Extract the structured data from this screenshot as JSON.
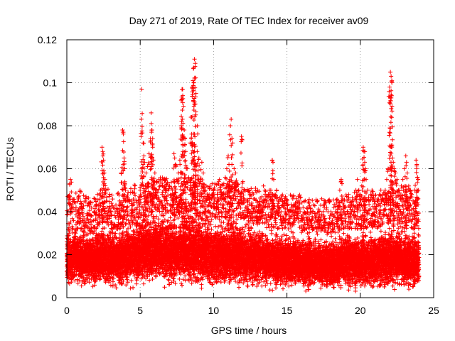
{
  "chart_data": {
    "type": "scatter",
    "title": "Day 271 of 2019, Rate Of TEC Index for receiver av09",
    "xlabel": "GPS time / hours",
    "ylabel": "ROTI / TECUs",
    "xlim": [
      0,
      25
    ],
    "ylim": [
      0,
      0.12
    ],
    "xticks": [
      0,
      5,
      10,
      15,
      20,
      25
    ],
    "yticks": [
      0,
      0.02,
      0.04,
      0.06,
      0.08,
      0.1,
      0.12
    ],
    "xtick_labels": [
      "0",
      "5",
      "10",
      "15",
      "20",
      "25"
    ],
    "ytick_labels": [
      "0",
      "0.02",
      "0.04",
      "0.06",
      "0.08",
      "0.1",
      "0.12"
    ],
    "grid": true,
    "marker": "+",
    "series": [
      {
        "color": "#ff0000",
        "points": [
          [
            0.05,
            0.012
          ],
          [
            0.1,
            0.02
          ],
          [
            0.15,
            0.03
          ],
          [
            0.2,
            0.053
          ],
          [
            0.25,
            0.055
          ],
          [
            0.3,
            0.04
          ],
          [
            0.4,
            0.025
          ],
          [
            0.5,
            0.018
          ],
          [
            0.6,
            0.03
          ],
          [
            0.7,
            0.035
          ],
          [
            0.8,
            0.046
          ],
          [
            0.9,
            0.05
          ],
          [
            1.0,
            0.042
          ],
          [
            1.1,
            0.028
          ],
          [
            1.2,
            0.022
          ],
          [
            1.3,
            0.035
          ],
          [
            1.4,
            0.039
          ],
          [
            1.5,
            0.044
          ],
          [
            1.6,
            0.03
          ],
          [
            1.7,
            0.038
          ],
          [
            1.8,
            0.03
          ],
          [
            1.9,
            0.046
          ],
          [
            2.0,
            0.043
          ],
          [
            2.1,
            0.035
          ],
          [
            2.2,
            0.041
          ],
          [
            2.3,
            0.05
          ],
          [
            2.4,
            0.07
          ],
          [
            2.45,
            0.068
          ],
          [
            2.5,
            0.064
          ],
          [
            2.55,
            0.058
          ],
          [
            2.6,
            0.055
          ],
          [
            2.7,
            0.045
          ],
          [
            2.8,
            0.038
          ],
          [
            2.9,
            0.042
          ],
          [
            3.0,
            0.035
          ],
          [
            3.1,
            0.03
          ],
          [
            3.2,
            0.033
          ],
          [
            3.3,
            0.028
          ],
          [
            3.4,
            0.032
          ],
          [
            3.5,
            0.034
          ],
          [
            3.6,
            0.045
          ],
          [
            3.7,
            0.058
          ],
          [
            3.8,
            0.078
          ],
          [
            3.85,
            0.077
          ],
          [
            3.9,
            0.065
          ],
          [
            3.95,
            0.06
          ],
          [
            4.0,
            0.05
          ],
          [
            4.1,
            0.042
          ],
          [
            4.2,
            0.036
          ],
          [
            4.3,
            0.035
          ],
          [
            4.4,
            0.045
          ],
          [
            4.5,
            0.04
          ],
          [
            4.6,
            0.038
          ],
          [
            4.7,
            0.036
          ],
          [
            4.8,
            0.042
          ],
          [
            4.9,
            0.045
          ],
          [
            5.0,
            0.05
          ],
          [
            5.1,
            0.097
          ],
          [
            5.2,
            0.072
          ],
          [
            5.25,
            0.066
          ],
          [
            5.3,
            0.063
          ],
          [
            5.4,
            0.058
          ],
          [
            5.5,
            0.061
          ],
          [
            5.6,
            0.067
          ],
          [
            5.7,
            0.074
          ],
          [
            5.75,
            0.086
          ],
          [
            5.8,
            0.078
          ],
          [
            5.85,
            0.07
          ],
          [
            5.9,
            0.064
          ],
          [
            6.0,
            0.058
          ],
          [
            6.1,
            0.05
          ],
          [
            6.2,
            0.046
          ],
          [
            6.3,
            0.043
          ],
          [
            6.4,
            0.045
          ],
          [
            6.5,
            0.048
          ],
          [
            6.6,
            0.05
          ],
          [
            6.7,
            0.055
          ],
          [
            6.8,
            0.047
          ],
          [
            6.9,
            0.05
          ],
          [
            7.0,
            0.052
          ],
          [
            7.1,
            0.048
          ],
          [
            7.2,
            0.05
          ],
          [
            7.3,
            0.067
          ],
          [
            7.35,
            0.065
          ],
          [
            7.4,
            0.062
          ],
          [
            7.5,
            0.055
          ],
          [
            7.6,
            0.058
          ],
          [
            7.7,
            0.064
          ],
          [
            7.8,
            0.08
          ],
          [
            7.85,
            0.097
          ],
          [
            7.9,
            0.094
          ],
          [
            7.95,
            0.089
          ],
          [
            8.0,
            0.078
          ],
          [
            8.05,
            0.074
          ],
          [
            8.1,
            0.068
          ],
          [
            8.2,
            0.06
          ],
          [
            8.3,
            0.056
          ],
          [
            8.4,
            0.072
          ],
          [
            8.5,
            0.084
          ],
          [
            8.55,
            0.098
          ],
          [
            8.6,
            0.101
          ],
          [
            8.65,
            0.107
          ],
          [
            8.7,
            0.111
          ],
          [
            8.75,
            0.109
          ],
          [
            8.8,
            0.095
          ],
          [
            8.9,
            0.08
          ],
          [
            9.0,
            0.065
          ],
          [
            9.1,
            0.055
          ],
          [
            9.2,
            0.063
          ],
          [
            9.3,
            0.058
          ],
          [
            9.4,
            0.05
          ],
          [
            9.5,
            0.046
          ],
          [
            9.6,
            0.04
          ],
          [
            9.7,
            0.048
          ],
          [
            9.8,
            0.044
          ],
          [
            9.9,
            0.053
          ],
          [
            10.0,
            0.05
          ],
          [
            10.1,
            0.046
          ],
          [
            10.2,
            0.042
          ],
          [
            10.3,
            0.05
          ],
          [
            10.4,
            0.055
          ],
          [
            10.5,
            0.052
          ],
          [
            10.6,
            0.048
          ],
          [
            10.7,
            0.053
          ],
          [
            10.8,
            0.056
          ],
          [
            10.9,
            0.06
          ],
          [
            11.0,
            0.066
          ],
          [
            11.05,
            0.062
          ],
          [
            11.1,
            0.055
          ],
          [
            11.15,
            0.08
          ],
          [
            11.2,
            0.083
          ],
          [
            11.3,
            0.072
          ],
          [
            11.4,
            0.06
          ],
          [
            11.5,
            0.058
          ],
          [
            11.6,
            0.052
          ],
          [
            11.7,
            0.05
          ],
          [
            11.8,
            0.048
          ],
          [
            11.9,
            0.075
          ],
          [
            12.0,
            0.054
          ],
          [
            12.1,
            0.046
          ],
          [
            12.2,
            0.042
          ],
          [
            12.3,
            0.045
          ],
          [
            12.4,
            0.05
          ],
          [
            12.5,
            0.048
          ],
          [
            12.6,
            0.044
          ],
          [
            12.7,
            0.04
          ],
          [
            12.8,
            0.046
          ],
          [
            12.9,
            0.042
          ],
          [
            13.0,
            0.05
          ],
          [
            13.1,
            0.044
          ],
          [
            13.2,
            0.04
          ],
          [
            13.3,
            0.047
          ],
          [
            13.4,
            0.052
          ],
          [
            13.5,
            0.05
          ],
          [
            13.6,
            0.045
          ],
          [
            13.7,
            0.042
          ],
          [
            13.8,
            0.05
          ],
          [
            13.9,
            0.05
          ],
          [
            14.0,
            0.064
          ],
          [
            14.05,
            0.063
          ],
          [
            14.1,
            0.055
          ],
          [
            14.2,
            0.048
          ],
          [
            14.3,
            0.05
          ],
          [
            14.4,
            0.045
          ],
          [
            14.5,
            0.042
          ],
          [
            14.6,
            0.04
          ],
          [
            14.7,
            0.045
          ],
          [
            14.8,
            0.042
          ],
          [
            14.9,
            0.047
          ],
          [
            15.0,
            0.044
          ],
          [
            15.1,
            0.04
          ],
          [
            15.2,
            0.038
          ],
          [
            15.3,
            0.042
          ],
          [
            15.4,
            0.046
          ],
          [
            15.5,
            0.04
          ],
          [
            15.6,
            0.044
          ],
          [
            15.7,
            0.042
          ],
          [
            15.8,
            0.045
          ],
          [
            15.9,
            0.04
          ],
          [
            16.0,
            0.038
          ],
          [
            16.1,
            0.042
          ],
          [
            16.2,
            0.035
          ],
          [
            16.3,
            0.039
          ],
          [
            16.4,
            0.04
          ],
          [
            16.5,
            0.044
          ],
          [
            16.6,
            0.04
          ],
          [
            16.7,
            0.036
          ],
          [
            16.8,
            0.032
          ],
          [
            16.9,
            0.035
          ],
          [
            17.0,
            0.038
          ],
          [
            17.1,
            0.034
          ],
          [
            17.2,
            0.04
          ],
          [
            17.3,
            0.036
          ],
          [
            17.4,
            0.033
          ],
          [
            17.5,
            0.038
          ],
          [
            17.6,
            0.044
          ],
          [
            17.7,
            0.042
          ],
          [
            17.8,
            0.04
          ],
          [
            17.9,
            0.037
          ],
          [
            18.0,
            0.04
          ],
          [
            18.1,
            0.036
          ],
          [
            18.2,
            0.042
          ],
          [
            18.3,
            0.04
          ],
          [
            18.4,
            0.044
          ],
          [
            18.5,
            0.045
          ],
          [
            18.6,
            0.05
          ],
          [
            18.7,
            0.055
          ],
          [
            18.75,
            0.053
          ],
          [
            18.8,
            0.046
          ],
          [
            18.9,
            0.04
          ],
          [
            19.0,
            0.042
          ],
          [
            19.1,
            0.045
          ],
          [
            19.2,
            0.048
          ],
          [
            19.3,
            0.042
          ],
          [
            19.4,
            0.04
          ],
          [
            19.5,
            0.045
          ],
          [
            19.6,
            0.049
          ],
          [
            19.7,
            0.05
          ],
          [
            19.8,
            0.055
          ],
          [
            19.9,
            0.05
          ],
          [
            20.0,
            0.048
          ],
          [
            20.1,
            0.052
          ],
          [
            20.2,
            0.07
          ],
          [
            20.25,
            0.068
          ],
          [
            20.3,
            0.063
          ],
          [
            20.35,
            0.06
          ],
          [
            20.4,
            0.055
          ],
          [
            20.5,
            0.05
          ],
          [
            20.6,
            0.045
          ],
          [
            20.7,
            0.048
          ],
          [
            20.8,
            0.05
          ],
          [
            20.9,
            0.046
          ],
          [
            21.0,
            0.042
          ],
          [
            21.1,
            0.04
          ],
          [
            21.2,
            0.045
          ],
          [
            21.3,
            0.048
          ],
          [
            21.4,
            0.05
          ],
          [
            21.5,
            0.046
          ],
          [
            21.6,
            0.045
          ],
          [
            21.7,
            0.05
          ],
          [
            21.8,
            0.055
          ],
          [
            21.9,
            0.06
          ],
          [
            22.0,
            0.098
          ],
          [
            22.05,
            0.105
          ],
          [
            22.1,
            0.103
          ],
          [
            22.15,
            0.1
          ],
          [
            22.2,
            0.065
          ],
          [
            22.25,
            0.063
          ],
          [
            22.3,
            0.06
          ],
          [
            22.4,
            0.058
          ],
          [
            22.5,
            0.055
          ],
          [
            22.6,
            0.05
          ],
          [
            22.7,
            0.047
          ],
          [
            22.8,
            0.052
          ],
          [
            22.9,
            0.055
          ],
          [
            23.0,
            0.06
          ],
          [
            23.1,
            0.066
          ],
          [
            23.15,
            0.063
          ],
          [
            23.2,
            0.058
          ],
          [
            23.3,
            0.052
          ],
          [
            23.4,
            0.05
          ],
          [
            23.5,
            0.048
          ],
          [
            23.6,
            0.045
          ],
          [
            23.7,
            0.05
          ],
          [
            23.8,
            0.064
          ],
          [
            23.85,
            0.062
          ],
          [
            23.9,
            0.056
          ],
          [
            23.95,
            0.05
          ]
        ],
        "band": {
          "x": [
            0,
            0.5,
            1,
            1.5,
            2,
            2.5,
            3,
            3.5,
            4,
            4.5,
            5,
            5.5,
            6,
            6.5,
            7,
            7.5,
            8,
            8.5,
            9,
            9.5,
            10,
            10.5,
            11,
            11.5,
            12,
            12.5,
            13,
            13.5,
            14,
            14.5,
            15,
            15.5,
            16,
            16.5,
            17,
            17.5,
            18,
            18.5,
            19,
            19.5,
            20,
            20.5,
            21,
            21.5,
            22,
            22.5,
            23,
            23.5,
            24
          ],
          "center": [
            0.018,
            0.019,
            0.018,
            0.017,
            0.018,
            0.019,
            0.018,
            0.018,
            0.019,
            0.02,
            0.021,
            0.022,
            0.022,
            0.022,
            0.021,
            0.021,
            0.022,
            0.022,
            0.021,
            0.02,
            0.02,
            0.02,
            0.02,
            0.02,
            0.019,
            0.019,
            0.019,
            0.018,
            0.017,
            0.017,
            0.017,
            0.017,
            0.016,
            0.016,
            0.016,
            0.016,
            0.016,
            0.016,
            0.017,
            0.017,
            0.017,
            0.017,
            0.017,
            0.018,
            0.018,
            0.018,
            0.018,
            0.017,
            0.017
          ],
          "spread": [
            0.014,
            0.015,
            0.014,
            0.014,
            0.015,
            0.016,
            0.015,
            0.015,
            0.016,
            0.017,
            0.017,
            0.018,
            0.018,
            0.018,
            0.017,
            0.017,
            0.018,
            0.018,
            0.018,
            0.017,
            0.017,
            0.017,
            0.017,
            0.017,
            0.016,
            0.016,
            0.016,
            0.015,
            0.015,
            0.015,
            0.015,
            0.015,
            0.014,
            0.014,
            0.014,
            0.014,
            0.014,
            0.014,
            0.015,
            0.015,
            0.015,
            0.015,
            0.015,
            0.016,
            0.016,
            0.016,
            0.016,
            0.015,
            0.015
          ]
        }
      }
    ]
  }
}
